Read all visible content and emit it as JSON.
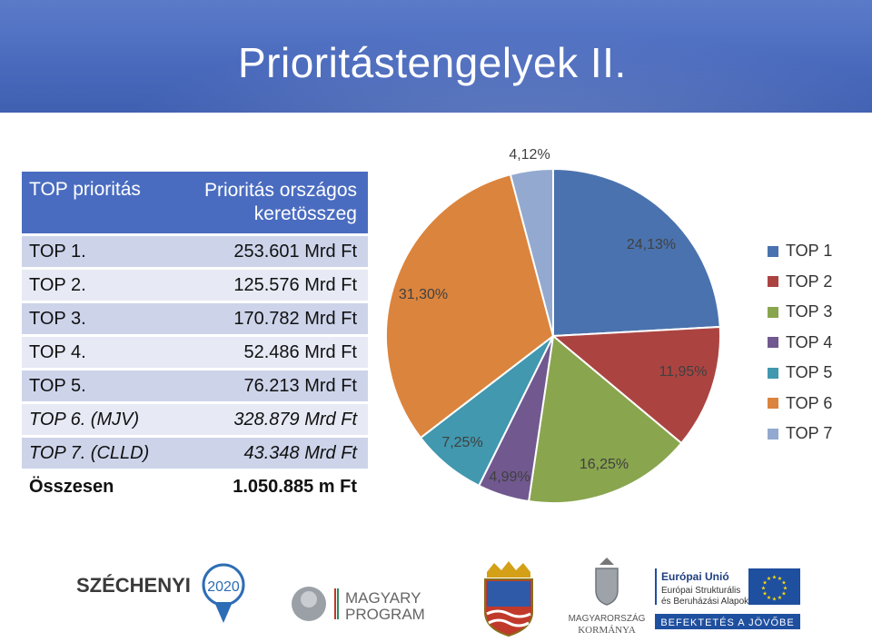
{
  "slide": {
    "title": "Prioritástengelyek II."
  },
  "table": {
    "headers": [
      "TOP prioritás",
      "Prioritás országos keretösszeg"
    ],
    "rows": [
      {
        "name": "TOP 1.",
        "amount": "253.601 Mrd Ft",
        "italic": false
      },
      {
        "name": "TOP 2.",
        "amount": "125.576 Mrd Ft",
        "italic": false
      },
      {
        "name": "TOP 3.",
        "amount": "170.782 Mrd Ft",
        "italic": false
      },
      {
        "name": "TOP 4.",
        "amount": "52.486 Mrd Ft",
        "italic": false
      },
      {
        "name": "TOP 5.",
        "amount": "76.213 Mrd Ft",
        "italic": false
      },
      {
        "name": "TOP 6. (MJV)",
        "amount": "328.879 Mrd Ft",
        "italic": true
      },
      {
        "name": "TOP 7. (CLLD)",
        "amount": "43.348 Mrd Ft",
        "italic": true
      }
    ],
    "total": {
      "name": "Összesen",
      "amount": "1.050.885 m Ft"
    }
  },
  "chart_data": {
    "type": "pie",
    "categories": [
      "TOP 1",
      "TOP 2",
      "TOP 3",
      "TOP 4",
      "TOP 5",
      "TOP 6",
      "TOP 7"
    ],
    "values": [
      24.13,
      11.95,
      16.25,
      4.99,
      7.25,
      31.3,
      4.12
    ],
    "labels": [
      "24,13%",
      "11,95%",
      "16,25%",
      "4,99%",
      "7,25%",
      "31,30%",
      "4,12%"
    ],
    "colors": [
      "#4a72ae",
      "#ab4441",
      "#89a54e",
      "#71588f",
      "#4198af",
      "#db843d",
      "#93a9cf"
    ],
    "legend_position": "right"
  },
  "footer": {
    "szechenyi": "SZÉCHENYI",
    "year": "2020",
    "magyary_line1": "MAGYARY",
    "magyary_line2": "PROGRAM",
    "kormany_line1": "MAGYARORSZÁG",
    "kormany_line2": "KORMÁNYA",
    "eu_line1": "Európai Unió",
    "eu_line2": "Európai Strukturális",
    "eu_line3": "és Beruházási Alapok",
    "eu_banner": "BEFEKTETÉS A JÖVŐBE"
  }
}
